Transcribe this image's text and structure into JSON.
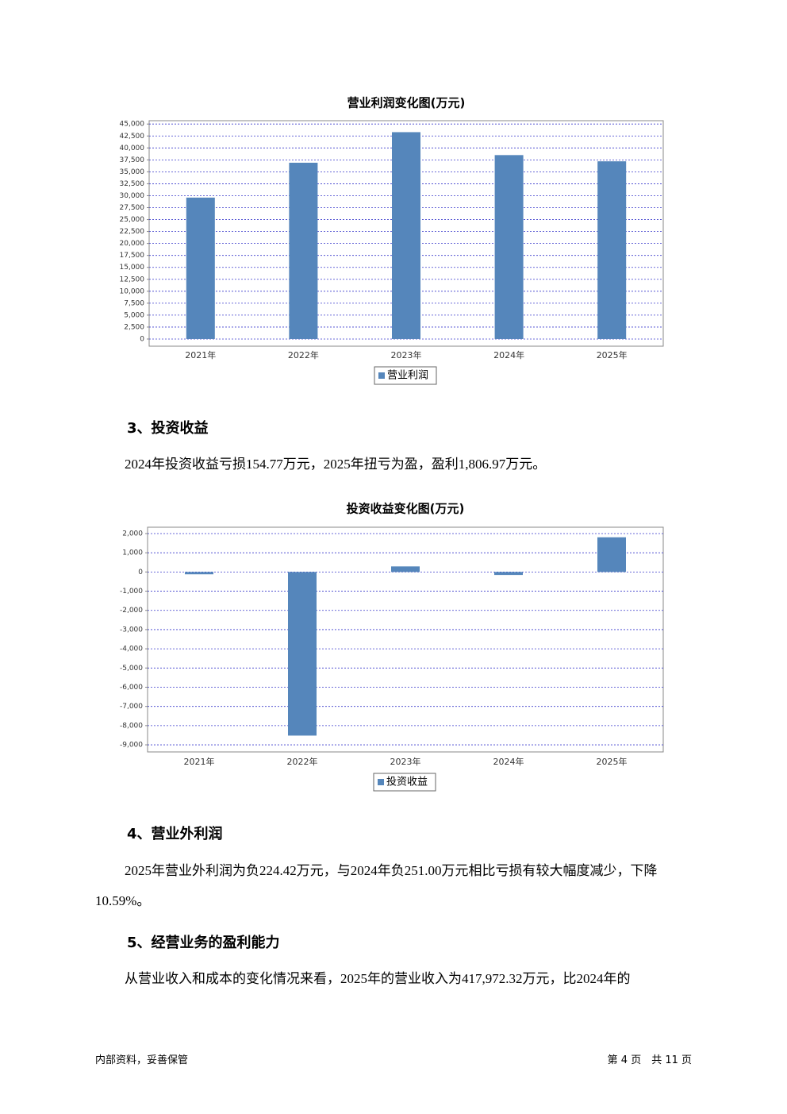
{
  "chart_data": [
    {
      "type": "bar",
      "title": "营业利润变化图(万元)",
      "categories": [
        "2021年",
        "2022年",
        "2023年",
        "2024年",
        "2025年"
      ],
      "series": [
        {
          "name": "营业利润",
          "color": "#5586bb",
          "values": [
            29600,
            36900,
            43300,
            38500,
            37200
          ]
        }
      ],
      "ylim": [
        -1500,
        45700
      ],
      "yticks": [
        0,
        {
          "value": 2500,
          "label": "2,500"
        },
        {
          "value": 5000,
          "label": "5,000"
        },
        {
          "value": 7500,
          "label": "7,500"
        },
        {
          "value": 10000,
          "label": "10,000"
        },
        {
          "value": 12500,
          "label": "12,500"
        },
        {
          "value": 15000,
          "label": "15,000"
        },
        {
          "value": 17500,
          "label": "17,500"
        },
        {
          "value": 20000,
          "label": "20,000"
        },
        {
          "value": 22500,
          "label": "22,500"
        },
        {
          "value": 25000,
          "label": "25,000"
        },
        {
          "value": 27500,
          "label": "27,500"
        },
        {
          "value": 30000,
          "label": "30,000"
        },
        {
          "value": 32500,
          "label": "32,500"
        },
        {
          "value": 35000,
          "label": "35,000"
        },
        {
          "value": 37500,
          "label": "37,500"
        },
        {
          "value": 40000,
          "label": "40,000"
        },
        {
          "value": 42500,
          "label": "42,500"
        },
        {
          "value": 45000,
          "label": "45,000"
        }
      ],
      "grid": true
    },
    {
      "type": "bar",
      "title": "投资收益变化图(万元)",
      "categories": [
        "2021年",
        "2022年",
        "2023年",
        "2024年",
        "2025年"
      ],
      "series": [
        {
          "name": "投资收益",
          "color": "#5586bb",
          "values": [
            -120,
            -8520,
            290,
            -154.77,
            1806.97
          ]
        }
      ],
      "ylim": [
        -9370,
        2330
      ],
      "yticks": [
        {
          "value": 2000,
          "label": "2,000"
        },
        {
          "value": 1000,
          "label": "1,000"
        },
        0,
        {
          "value": -1000,
          "label": "-1,000"
        },
        {
          "value": -2000,
          "label": "-2,000"
        },
        {
          "value": -3000,
          "label": "-3,000"
        },
        {
          "value": -4000,
          "label": "-4,000"
        },
        {
          "value": -5000,
          "label": "-5,000"
        },
        {
          "value": -6000,
          "label": "-6,000"
        },
        {
          "value": -7000,
          "label": "-7,000"
        },
        {
          "value": -8000,
          "label": "-8,000"
        },
        {
          "value": -9000,
          "label": "-9,000"
        }
      ],
      "grid": true
    }
  ],
  "sections": [
    {
      "heading": "3、投资收益",
      "paragraph": "2024年投资收益亏损154.77万元，2025年扭亏为盈，盈利1,806.97万元。"
    },
    {
      "heading": "4、营业外利润",
      "paragraph": "2025年营业外利润为负224.42万元，与2024年负251.00万元相比亏损有较大幅度减少，下降10.59%。"
    },
    {
      "heading": "5、经营业务的盈利能力",
      "paragraph": "从营业收入和成本的变化情况来看，2025年的营业收入为417,972.32万元，比2024年的"
    }
  ],
  "footer": {
    "left": "内部资料，妥善保管",
    "right": "第 4 页　共 11 页"
  }
}
